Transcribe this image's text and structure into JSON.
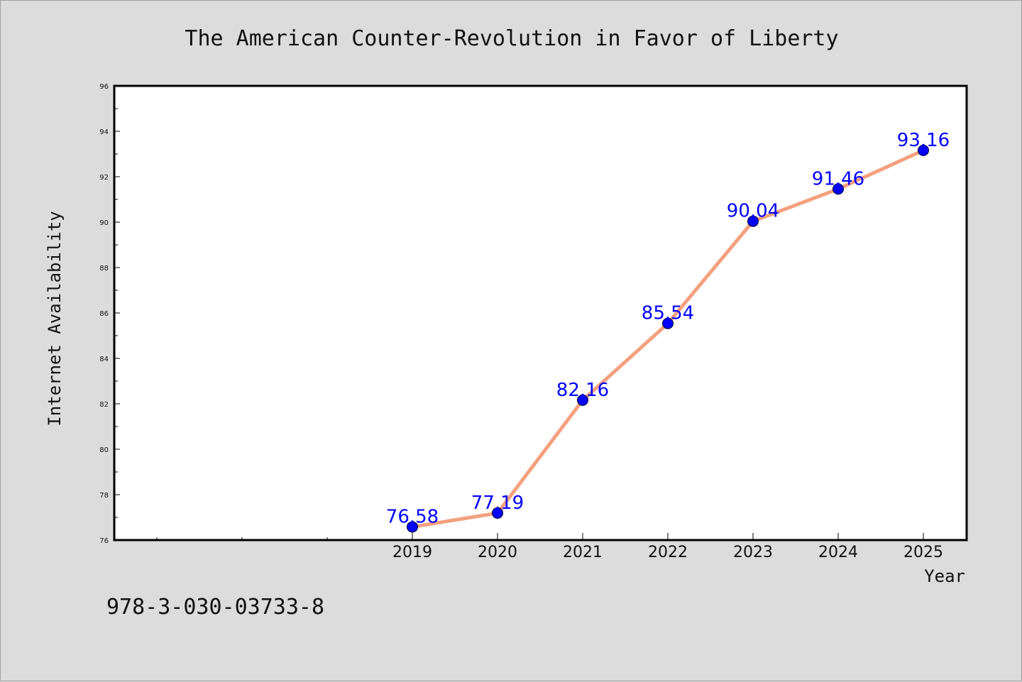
{
  "colors": {
    "background": "#dcdcdc",
    "plot_background": "#ffffff",
    "line": "#f4a07e",
    "marker": "#0000ff",
    "data_label": "#0000ff"
  },
  "footer_text": "978-3-030-03733-8",
  "chart_data": {
    "type": "line",
    "title": "The American Counter-Revolution in Favor of Liberty",
    "xlabel": "Year",
    "ylabel": "Internet Availability",
    "x": [
      "2019",
      "2020",
      "2021",
      "2022",
      "2023",
      "2024",
      "2025"
    ],
    "series": [
      {
        "values": [
          76.58,
          77.19,
          82.16,
          85.54,
          90.04,
          91.46,
          93.16
        ]
      }
    ],
    "data_labels": [
      "76.58",
      "77.19",
      "82.16",
      "85.54",
      "90.04",
      "91.46",
      "93.16"
    ],
    "ylim": [
      76,
      96
    ],
    "yticks": [
      "76",
      "78",
      "80",
      "82",
      "84",
      "86",
      "88",
      "90",
      "92",
      "94",
      "96"
    ],
    "grid": false,
    "legend": "none"
  }
}
